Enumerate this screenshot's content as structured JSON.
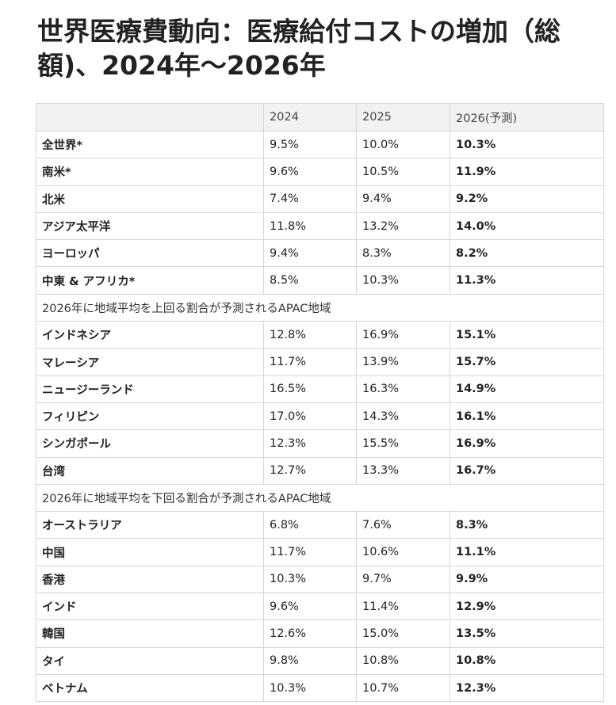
{
  "header": {
    "title": "世界医療費動向：医療給付コストの増加（総額)、2024年～2026年"
  },
  "table": {
    "columns": [
      "2024",
      "2025",
      "2026(予測)"
    ],
    "groups": [
      {
        "rows": [
          {
            "name": "全世界*",
            "values": [
              "9.5%",
              "10.0%",
              "10.3%"
            ]
          },
          {
            "name": "南米*",
            "values": [
              "9.6%",
              "10.5%",
              "11.9%"
            ]
          },
          {
            "name": "北米",
            "values": [
              "7.4%",
              "9.4%",
              "9.2%"
            ]
          },
          {
            "name": "アジア太平洋",
            "values": [
              "11.8%",
              "13.2%",
              "14.0%"
            ]
          },
          {
            "name": "ヨーロッパ",
            "values": [
              "9.4%",
              "8.3%",
              "8.2%"
            ]
          },
          {
            "name": "中東 & アフリカ*",
            "values": [
              "8.5%",
              "10.3%",
              "11.3%"
            ]
          }
        ]
      },
      {
        "label": "2026年に地域平均を上回る割合が予測されるAPAC地域",
        "rows": [
          {
            "name": "インドネシア",
            "values": [
              "12.8%",
              "16.9%",
              "15.1%"
            ]
          },
          {
            "name": "マレーシア",
            "values": [
              "11.7%",
              "13.9%",
              "15.7%"
            ]
          },
          {
            "name": "ニュージーランド",
            "values": [
              "16.5%",
              "16.3%",
              "14.9%"
            ]
          },
          {
            "name": "フィリピン",
            "values": [
              "17.0%",
              "14.3%",
              "16.1%"
            ]
          },
          {
            "name": "シンガポール",
            "values": [
              "12.3%",
              "15.5%",
              "16.9%"
            ]
          },
          {
            "name": "台湾",
            "values": [
              "12.7%",
              "13.3%",
              "16.7%"
            ]
          }
        ]
      },
      {
        "label": "2026年に地域平均を下回る割合が予測されるAPAC地域",
        "rows": [
          {
            "name": "オーストラリア",
            "values": [
              "6.8%",
              "7.6%",
              "8.3%"
            ]
          },
          {
            "name": "中国",
            "values": [
              "11.7%",
              "10.6%",
              "11.1%"
            ]
          },
          {
            "name": "香港",
            "values": [
              "10.3%",
              "9.7%",
              "9.9%"
            ]
          },
          {
            "name": "インド",
            "values": [
              "9.6%",
              "11.4%",
              "12.9%"
            ]
          },
          {
            "name": "韓国",
            "values": [
              "12.6%",
              "15.0%",
              "13.5%"
            ]
          },
          {
            "name": "タイ",
            "values": [
              "9.8%",
              "10.8%",
              "10.8%"
            ]
          },
          {
            "name": "ベトナム",
            "values": [
              "10.3%",
              "10.7%",
              "12.3%"
            ]
          }
        ]
      }
    ]
  }
}
